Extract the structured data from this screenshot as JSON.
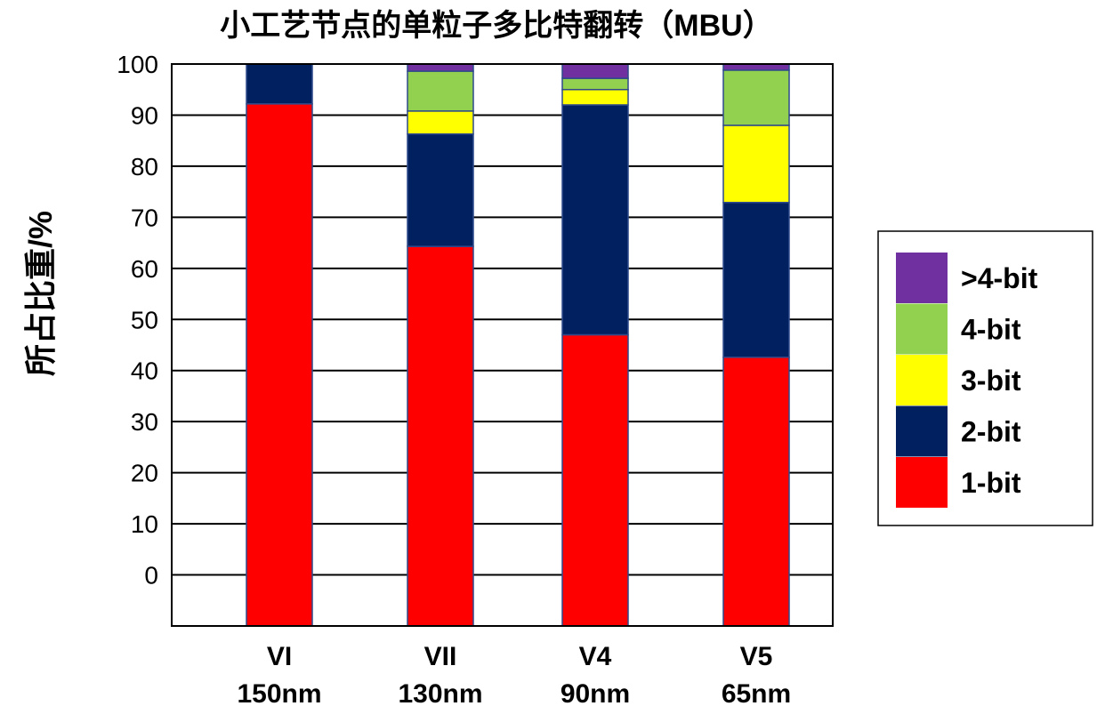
{
  "chart_data": {
    "type": "bar",
    "stacked": true,
    "title": "小工艺节点的单粒子多比特翻转（MBU）",
    "xlabel": "",
    "ylabel": "所占比重/%",
    "ylim": [
      -10,
      100
    ],
    "yticks": [
      0,
      10,
      20,
      30,
      40,
      50,
      60,
      70,
      80,
      90,
      100
    ],
    "grid": true,
    "legend_position": "right",
    "categories": [
      {
        "name": "VI",
        "node": "150nm"
      },
      {
        "name": "VII",
        "node": "130nm"
      },
      {
        "name": "V4",
        "node": "90nm"
      },
      {
        "name": "V5",
        "node": "65nm"
      }
    ],
    "series": [
      {
        "name": "1-bit",
        "color": "#FF0000",
        "values": [
          92.2,
          64.3,
          47.0,
          42.6
        ]
      },
      {
        "name": "2-bit",
        "color": "#002060",
        "values": [
          7.8,
          22.0,
          45.0,
          30.3
        ]
      },
      {
        "name": "3-bit",
        "color": "#FFFF00",
        "values": [
          0,
          4.5,
          3.0,
          15.1
        ]
      },
      {
        "name": "4-bit",
        "color": "#92D050",
        "values": [
          0,
          7.8,
          2.2,
          10.8
        ]
      },
      {
        "name": ">4-bit",
        "color": "#7030A0",
        "values": [
          0,
          1.4,
          2.8,
          1.2
        ]
      }
    ],
    "note": "bars start at the bottom of the plot area (-10)"
  }
}
